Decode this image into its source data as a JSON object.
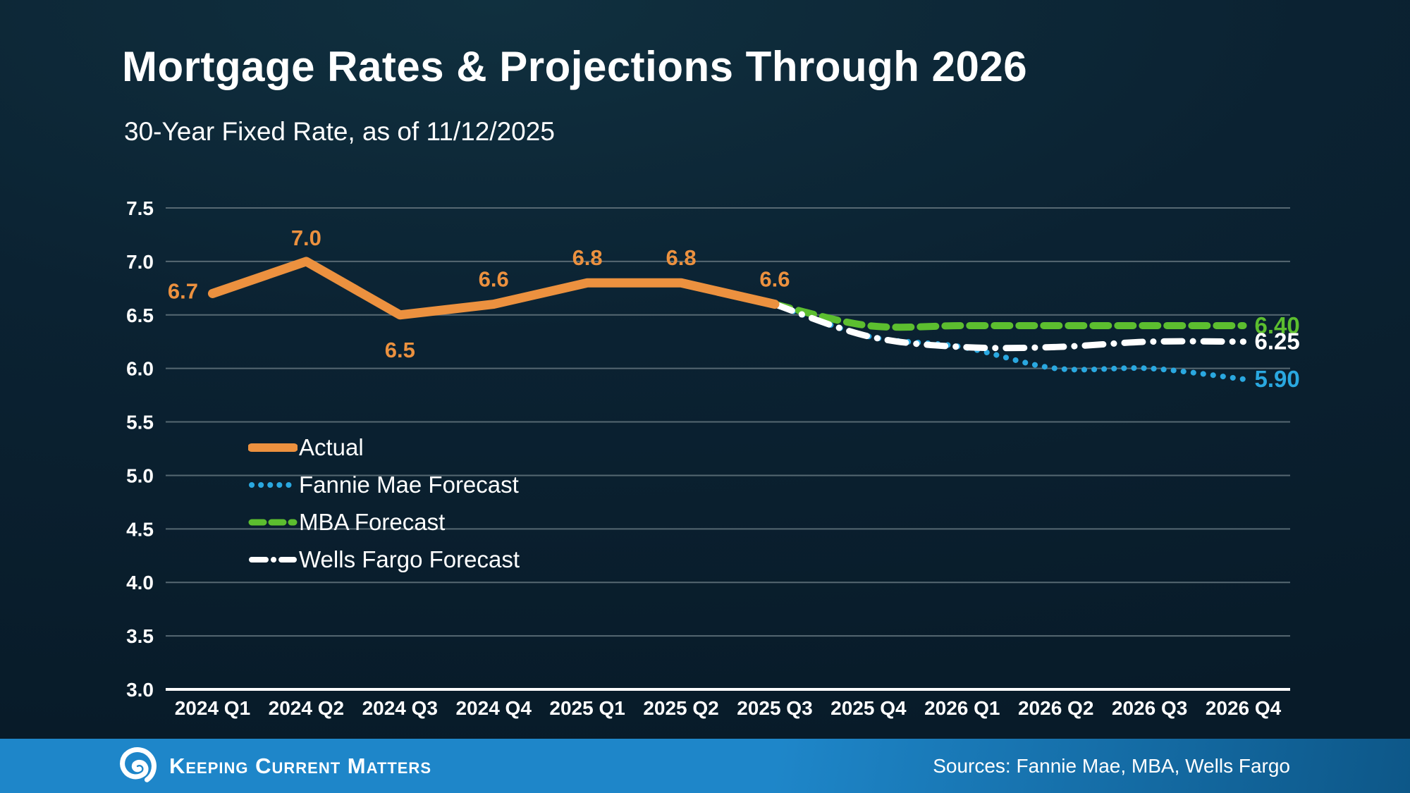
{
  "header": {
    "title": "Mortgage Rates & Projections Through 2026",
    "subtitle": "30-Year Fixed Rate, as of 11/12/2025"
  },
  "chart_data": {
    "type": "line",
    "title": "Mortgage Rates & Projections Through 2026",
    "subtitle": "30-Year Fixed Rate, as of 11/12/2025",
    "xlabel": "",
    "ylabel": "",
    "ylim": [
      3.0,
      7.5
    ],
    "ytick_labels": [
      "7.5",
      "7.0",
      "6.5",
      "6.0",
      "5.5",
      "5.0",
      "4.5",
      "4.0",
      "3.5",
      "3.0"
    ],
    "grid": true,
    "legend_position": "inside-left",
    "categories": [
      "2024 Q1",
      "2024 Q2",
      "2024 Q3",
      "2024 Q4",
      "2025 Q1",
      "2025 Q2",
      "2025 Q3",
      "2025 Q4",
      "2026 Q1",
      "2026 Q2",
      "2026 Q3",
      "2026 Q4"
    ],
    "series": [
      {
        "name": "Actual",
        "color": "#EC913F",
        "style": "solid",
        "values": [
          6.7,
          7.0,
          6.5,
          6.6,
          6.8,
          6.8,
          6.6,
          null,
          null,
          null,
          null,
          null
        ],
        "point_labels": [
          "6.7",
          "7.0",
          "6.5",
          "6.6",
          "6.8",
          "6.8",
          "6.6"
        ]
      },
      {
        "name": "Fannie Mae Forecast",
        "color": "#2AA8E0",
        "style": "dotted",
        "values": [
          null,
          null,
          null,
          null,
          null,
          null,
          6.6,
          6.3,
          6.2,
          6.0,
          6.0,
          5.9
        ],
        "end_label": "5.90"
      },
      {
        "name": "MBA Forecast",
        "color": "#5CBE2F",
        "style": "dashed",
        "values": [
          null,
          null,
          null,
          null,
          null,
          null,
          6.6,
          6.4,
          6.4,
          6.4,
          6.4,
          6.4
        ],
        "end_label": "6.40"
      },
      {
        "name": "Wells Fargo Forecast",
        "color": "#FFFFFF",
        "style": "dashdot",
        "values": [
          null,
          null,
          null,
          null,
          null,
          null,
          6.6,
          6.3,
          6.2,
          6.2,
          6.25,
          6.25
        ],
        "end_label": "6.25"
      }
    ],
    "gridline_color": "#566872",
    "axis_color": "#FFFFFF"
  },
  "footer": {
    "brand": "Keeping Current Matters",
    "sources": "Sources: Fannie Mae, MBA, Wells Fargo",
    "bar_color_left": "#1E86C9",
    "bar_color_right": "#0D5788"
  }
}
